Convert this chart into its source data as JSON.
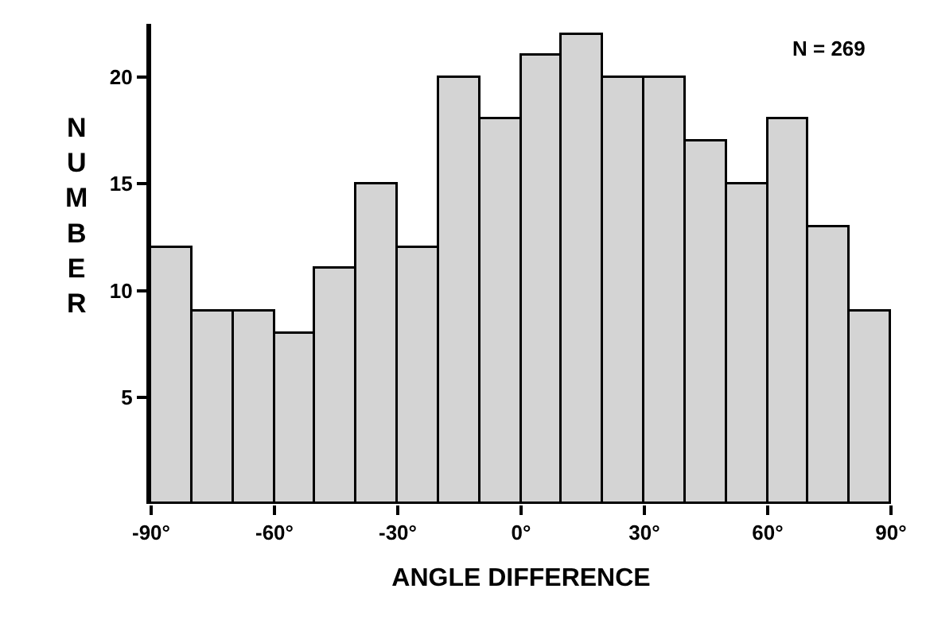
{
  "chart_data": {
    "type": "histogram",
    "xlabel": "ANGLE DIFFERENCE",
    "ylabel": "NUMBER",
    "bins": [
      -90,
      -80,
      -70,
      -60,
      -50,
      -40,
      -30,
      -20,
      -10,
      0,
      10,
      20,
      30,
      40,
      50,
      60,
      70,
      80,
      90
    ],
    "values": [
      12,
      9,
      9,
      8,
      11,
      15,
      12,
      20,
      18,
      21,
      22,
      20,
      20,
      17,
      15,
      18,
      13,
      9
    ],
    "color": "#d4d4d4",
    "xlim": [
      -90,
      90
    ],
    "xticks": [
      {
        "value": -90,
        "label": "-90°"
      },
      {
        "value": -60,
        "label": "-60°"
      },
      {
        "value": -30,
        "label": "-30°"
      },
      {
        "value": 0,
        "label": "0°"
      },
      {
        "value": 30,
        "label": "30°"
      },
      {
        "value": 60,
        "label": "60°"
      },
      {
        "value": 90,
        "label": "90°"
      }
    ],
    "ylim": [
      0,
      22.5
    ],
    "yticks": [
      5,
      10,
      15,
      20
    ],
    "annotations": [
      "N = 269"
    ]
  }
}
